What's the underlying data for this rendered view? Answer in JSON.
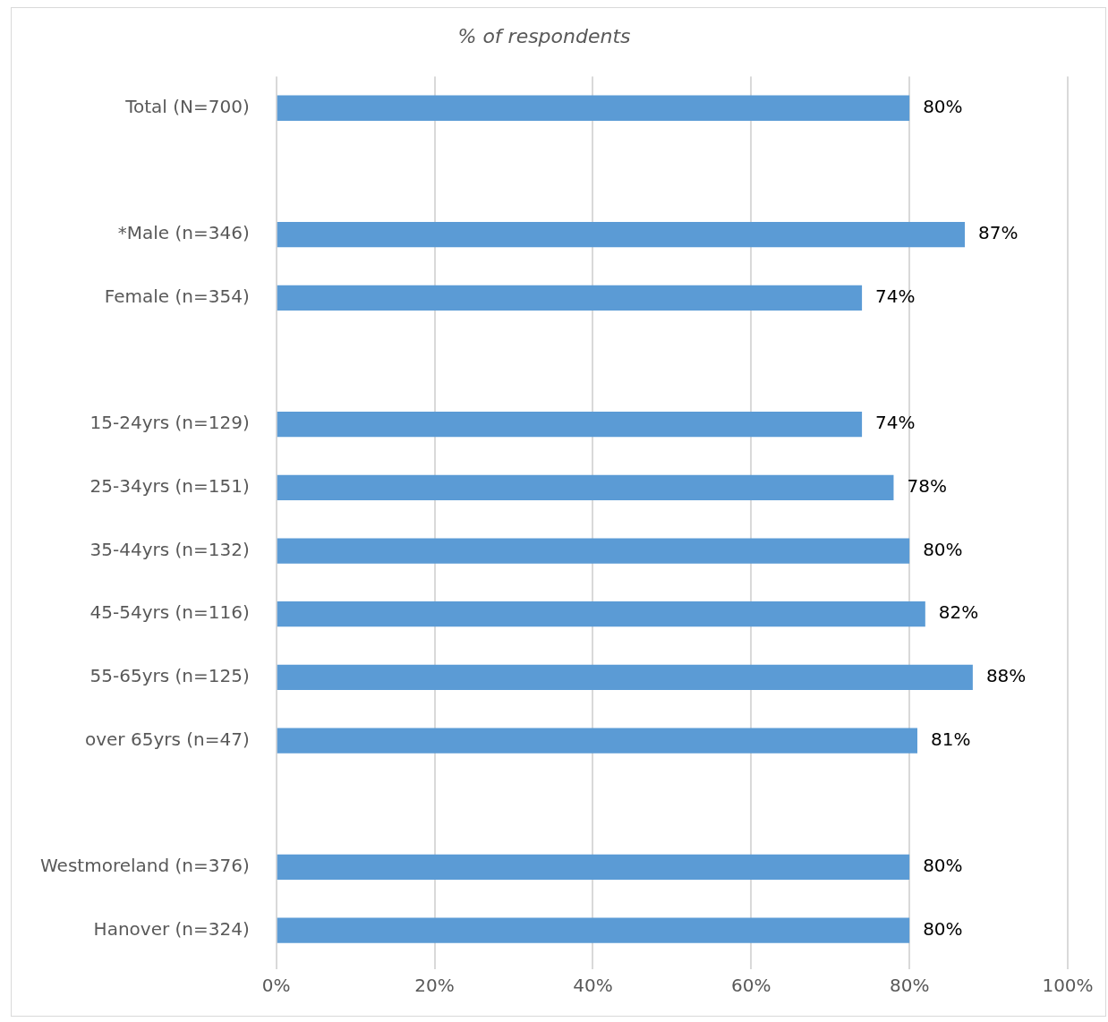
{
  "chart_data": {
    "type": "bar",
    "orientation": "horizontal",
    "title": "% of respondents",
    "categories": [
      "Total (N=700)",
      null,
      "*Male (n=346)",
      "Female (n=354)",
      null,
      "15-24yrs (n=129)",
      "25-34yrs (n=151)",
      "35-44yrs (n=132)",
      "45-54yrs (n=116)",
      "55-65yrs (n=125)",
      "over 65yrs (n=47)",
      null,
      "Westmoreland (n=376)",
      "Hanover (n=324)"
    ],
    "values": [
      80,
      null,
      87,
      74,
      null,
      74,
      78,
      80,
      82,
      88,
      81,
      null,
      80,
      80
    ],
    "value_labels": [
      "80%",
      null,
      "87%",
      "74%",
      null,
      "74%",
      "78%",
      "80%",
      "82%",
      "88%",
      "81%",
      null,
      "80%",
      "80%"
    ],
    "color": "#5b9bd5",
    "xlim": [
      0,
      100
    ],
    "xticks": [
      {
        "value": 0,
        "label": "0%"
      },
      {
        "value": 20,
        "label": "20%"
      },
      {
        "value": 40,
        "label": "40%"
      },
      {
        "value": 60,
        "label": "60%"
      },
      {
        "value": 80,
        "label": "80%"
      },
      {
        "value": 100,
        "label": "100%"
      }
    ],
    "grid": "x",
    "legend": false
  }
}
